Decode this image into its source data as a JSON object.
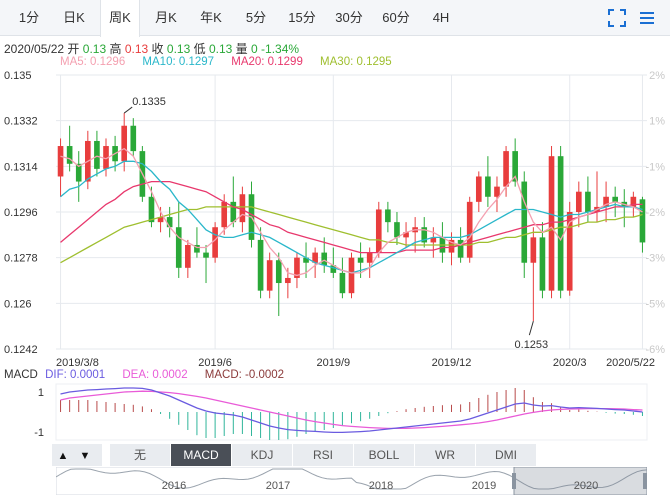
{
  "tabs": [
    "1分",
    "日K",
    "周K",
    "月K",
    "年K",
    "5分",
    "15分",
    "30分",
    "60分",
    "4H"
  ],
  "active_tab": "周K",
  "icons": {
    "fullscreen": "fullscreen-icon",
    "menu": "menu-icon"
  },
  "info": {
    "date": "2020/05/22",
    "open_label": "开",
    "open": "0.13",
    "high_label": "高",
    "high": "0.13",
    "close_label": "收",
    "close": "0.13",
    "low_label": "低",
    "low": "0.13",
    "volume_label": "量",
    "volume": "0",
    "change": "-1.34%"
  },
  "ma_legend": [
    {
      "label": "MA5: 0.1296",
      "color": "#f4a0b0"
    },
    {
      "label": "MA10: 0.1297",
      "color": "#2ab7ca"
    },
    {
      "label": "MA20: 0.1299",
      "color": "#e8386d"
    },
    {
      "label": "MA30: 0.1295",
      "color": "#9fbf2f"
    }
  ],
  "colors": {
    "up": "#e83d3d",
    "down": "#2aa838",
    "grid": "#e6e9ee",
    "axis_text": "#333333",
    "pct_text": "#c8c8c8",
    "dif": "#6a5be0",
    "dea": "#e95bd8"
  },
  "chart_data": {
    "type": "candlestick",
    "ylim": [
      0.1242,
      0.135
    ],
    "y_ticks": [
      "0.135",
      "0.1332",
      "0.1314",
      "0.1296",
      "0.1278",
      "0.126",
      "0.1242"
    ],
    "pct_ticks": [
      "2%",
      "1%",
      "-1%",
      "-2%",
      "-3%",
      "-5%",
      "-6%"
    ],
    "pct_tick_values": [
      0.135,
      0.1332,
      0.1314,
      0.1296,
      0.1278,
      0.126,
      0.1242
    ],
    "x_tick_labels": [
      "2019/3/8",
      "2019/6",
      "2019/9",
      "2019/12",
      "2020/3",
      "2020/5/22"
    ],
    "x_tick_index": [
      0,
      17,
      30,
      43,
      56,
      64
    ],
    "annotations": [
      {
        "text": "0.1335",
        "index": 7,
        "value": 0.1335
      },
      {
        "text": "0.1253",
        "index": 52,
        "value": 0.1253
      }
    ],
    "candles": [
      {
        "o": 0.131,
        "h": 0.1325,
        "l": 0.1302,
        "c": 0.1322
      },
      {
        "o": 0.1322,
        "h": 0.133,
        "l": 0.1312,
        "c": 0.1315
      },
      {
        "o": 0.1315,
        "h": 0.132,
        "l": 0.13,
        "c": 0.1308
      },
      {
        "o": 0.1308,
        "h": 0.1328,
        "l": 0.1305,
        "c": 0.1324
      },
      {
        "o": 0.1324,
        "h": 0.1328,
        "l": 0.131,
        "c": 0.1313
      },
      {
        "o": 0.1313,
        "h": 0.1325,
        "l": 0.131,
        "c": 0.1322
      },
      {
        "o": 0.1322,
        "h": 0.1326,
        "l": 0.1312,
        "c": 0.1316
      },
      {
        "o": 0.1316,
        "h": 0.1335,
        "l": 0.1312,
        "c": 0.133
      },
      {
        "o": 0.133,
        "h": 0.1333,
        "l": 0.1318,
        "c": 0.132
      },
      {
        "o": 0.132,
        "h": 0.1322,
        "l": 0.13,
        "c": 0.1302
      },
      {
        "o": 0.1302,
        "h": 0.1306,
        "l": 0.129,
        "c": 0.1292
      },
      {
        "o": 0.1292,
        "h": 0.1298,
        "l": 0.1288,
        "c": 0.1294
      },
      {
        "o": 0.1294,
        "h": 0.1298,
        "l": 0.1286,
        "c": 0.129
      },
      {
        "o": 0.129,
        "h": 0.13,
        "l": 0.127,
        "c": 0.1274
      },
      {
        "o": 0.1274,
        "h": 0.1285,
        "l": 0.127,
        "c": 0.1283
      },
      {
        "o": 0.1283,
        "h": 0.129,
        "l": 0.1278,
        "c": 0.128
      },
      {
        "o": 0.128,
        "h": 0.1283,
        "l": 0.1268,
        "c": 0.1278
      },
      {
        "o": 0.1278,
        "h": 0.1292,
        "l": 0.1276,
        "c": 0.129
      },
      {
        "o": 0.129,
        "h": 0.1303,
        "l": 0.1287,
        "c": 0.13
      },
      {
        "o": 0.13,
        "h": 0.131,
        "l": 0.129,
        "c": 0.1292
      },
      {
        "o": 0.1292,
        "h": 0.1306,
        "l": 0.1288,
        "c": 0.1303
      },
      {
        "o": 0.1303,
        "h": 0.1308,
        "l": 0.1282,
        "c": 0.1285
      },
      {
        "o": 0.1285,
        "h": 0.129,
        "l": 0.1262,
        "c": 0.1265
      },
      {
        "o": 0.1265,
        "h": 0.128,
        "l": 0.1262,
        "c": 0.1277
      },
      {
        "o": 0.1277,
        "h": 0.128,
        "l": 0.1255,
        "c": 0.1268
      },
      {
        "o": 0.1268,
        "h": 0.1274,
        "l": 0.1262,
        "c": 0.127
      },
      {
        "o": 0.127,
        "h": 0.128,
        "l": 0.1266,
        "c": 0.1278
      },
      {
        "o": 0.1278,
        "h": 0.1284,
        "l": 0.127,
        "c": 0.1276
      },
      {
        "o": 0.1276,
        "h": 0.1282,
        "l": 0.127,
        "c": 0.128
      },
      {
        "o": 0.128,
        "h": 0.1286,
        "l": 0.1272,
        "c": 0.1275
      },
      {
        "o": 0.1275,
        "h": 0.1282,
        "l": 0.127,
        "c": 0.1272
      },
      {
        "o": 0.1272,
        "h": 0.1278,
        "l": 0.1262,
        "c": 0.1264
      },
      {
        "o": 0.1264,
        "h": 0.128,
        "l": 0.1262,
        "c": 0.1278
      },
      {
        "o": 0.1278,
        "h": 0.1284,
        "l": 0.127,
        "c": 0.1276
      },
      {
        "o": 0.1276,
        "h": 0.1282,
        "l": 0.127,
        "c": 0.128
      },
      {
        "o": 0.128,
        "h": 0.13,
        "l": 0.1278,
        "c": 0.1297
      },
      {
        "o": 0.1297,
        "h": 0.13,
        "l": 0.1288,
        "c": 0.1292
      },
      {
        "o": 0.1292,
        "h": 0.1296,
        "l": 0.1283,
        "c": 0.1286
      },
      {
        "o": 0.1286,
        "h": 0.1292,
        "l": 0.1282,
        "c": 0.1288
      },
      {
        "o": 0.1288,
        "h": 0.1294,
        "l": 0.128,
        "c": 0.129
      },
      {
        "o": 0.129,
        "h": 0.1294,
        "l": 0.1282,
        "c": 0.1284
      },
      {
        "o": 0.1284,
        "h": 0.129,
        "l": 0.1278,
        "c": 0.1286
      },
      {
        "o": 0.1286,
        "h": 0.1292,
        "l": 0.1276,
        "c": 0.128
      },
      {
        "o": 0.128,
        "h": 0.1288,
        "l": 0.1275,
        "c": 0.1285
      },
      {
        "o": 0.1285,
        "h": 0.129,
        "l": 0.1276,
        "c": 0.1278
      },
      {
        "o": 0.1278,
        "h": 0.1302,
        "l": 0.1276,
        "c": 0.13
      },
      {
        "o": 0.13,
        "h": 0.1312,
        "l": 0.1296,
        "c": 0.131
      },
      {
        "o": 0.131,
        "h": 0.1318,
        "l": 0.1298,
        "c": 0.1302
      },
      {
        "o": 0.1302,
        "h": 0.131,
        "l": 0.1296,
        "c": 0.1306
      },
      {
        "o": 0.1306,
        "h": 0.1322,
        "l": 0.1302,
        "c": 0.132
      },
      {
        "o": 0.132,
        "h": 0.1325,
        "l": 0.1306,
        "c": 0.1308
      },
      {
        "o": 0.1308,
        "h": 0.1312,
        "l": 0.127,
        "c": 0.1276
      },
      {
        "o": 0.1276,
        "h": 0.129,
        "l": 0.1253,
        "c": 0.1286
      },
      {
        "o": 0.1286,
        "h": 0.1292,
        "l": 0.1262,
        "c": 0.1265
      },
      {
        "o": 0.1265,
        "h": 0.1322,
        "l": 0.1262,
        "c": 0.1318
      },
      {
        "o": 0.1318,
        "h": 0.1322,
        "l": 0.1262,
        "c": 0.1265
      },
      {
        "o": 0.1265,
        "h": 0.13,
        "l": 0.1263,
        "c": 0.1296
      },
      {
        "o": 0.1296,
        "h": 0.1308,
        "l": 0.129,
        "c": 0.1304
      },
      {
        "o": 0.1304,
        "h": 0.131,
        "l": 0.1292,
        "c": 0.1296
      },
      {
        "o": 0.1296,
        "h": 0.1312,
        "l": 0.1292,
        "c": 0.1298
      },
      {
        "o": 0.1298,
        "h": 0.1308,
        "l": 0.1292,
        "c": 0.1302
      },
      {
        "o": 0.1302,
        "h": 0.1306,
        "l": 0.1294,
        "c": 0.13
      },
      {
        "o": 0.13,
        "h": 0.1305,
        "l": 0.129,
        "c": 0.1298
      },
      {
        "o": 0.1298,
        "h": 0.1304,
        "l": 0.1294,
        "c": 0.1302
      },
      {
        "o": 0.1301,
        "h": 0.1302,
        "l": 0.128,
        "c": 0.1284
      }
    ],
    "ma5": [
      0.1318,
      0.1317,
      0.1314,
      0.1316,
      0.1318,
      0.1317,
      0.1319,
      0.1321,
      0.1318,
      0.1311,
      0.1304,
      0.1296,
      0.129,
      0.1286,
      0.1284,
      0.1282,
      0.1282,
      0.1285,
      0.1289,
      0.1292,
      0.1295,
      0.1294,
      0.1288,
      0.1282,
      0.1278,
      0.1272,
      0.1271,
      0.1272,
      0.1275,
      0.1277,
      0.1275,
      0.1273,
      0.1272,
      0.1272,
      0.1274,
      0.128,
      0.1284,
      0.1286,
      0.1288,
      0.1289,
      0.1289,
      0.1288,
      0.1286,
      0.1284,
      0.1283,
      0.1286,
      0.1292,
      0.1297,
      0.1301,
      0.1306,
      0.131,
      0.13,
      0.1292,
      0.1288,
      0.129,
      0.1285,
      0.1292,
      0.1294,
      0.1295,
      0.1297,
      0.1299,
      0.13,
      0.1299,
      0.1298,
      0.1296
    ],
    "ma10": [
      0.1302,
      0.1305,
      0.1306,
      0.1309,
      0.1311,
      0.1313,
      0.1314,
      0.1316,
      0.1316,
      0.1315,
      0.1312,
      0.1308,
      0.1305,
      0.13,
      0.1297,
      0.1293,
      0.1289,
      0.1287,
      0.1286,
      0.1286,
      0.1287,
      0.1288,
      0.1287,
      0.1286,
      0.1284,
      0.1282,
      0.128,
      0.1278,
      0.1276,
      0.1275,
      0.1274,
      0.1273,
      0.1272,
      0.1273,
      0.1274,
      0.1276,
      0.1278,
      0.128,
      0.1282,
      0.1284,
      0.1285,
      0.1286,
      0.1286,
      0.1286,
      0.1286,
      0.1287,
      0.1289,
      0.1291,
      0.1293,
      0.1295,
      0.1297,
      0.1297,
      0.1297,
      0.1296,
      0.1295,
      0.1294,
      0.1295,
      0.1295,
      0.1296,
      0.1297,
      0.1298,
      0.1299,
      0.1298,
      0.1298,
      0.1297
    ],
    "ma20": [
      0.1284,
      0.1287,
      0.129,
      0.1293,
      0.1296,
      0.1299,
      0.1301,
      0.1304,
      0.1306,
      0.1307,
      0.1308,
      0.1308,
      0.1308,
      0.1307,
      0.1306,
      0.1305,
      0.1304,
      0.1302,
      0.13,
      0.1298,
      0.1297,
      0.1295,
      0.1293,
      0.1291,
      0.129,
      0.1288,
      0.1287,
      0.1286,
      0.1285,
      0.1284,
      0.1283,
      0.1282,
      0.1281,
      0.128,
      0.128,
      0.128,
      0.128,
      0.128,
      0.1281,
      0.1281,
      0.1281,
      0.1281,
      0.1282,
      0.1282,
      0.1283,
      0.1284,
      0.1285,
      0.1286,
      0.1287,
      0.1288,
      0.1289,
      0.129,
      0.1291,
      0.1291,
      0.1292,
      0.1292,
      0.1293,
      0.1294,
      0.1295,
      0.1296,
      0.1297,
      0.1298,
      0.1298,
      0.1299,
      0.1299
    ],
    "ma30": [
      0.1276,
      0.1278,
      0.128,
      0.1282,
      0.1284,
      0.1286,
      0.1288,
      0.129,
      0.1291,
      0.1292,
      0.1293,
      0.1294,
      0.1295,
      0.1296,
      0.1297,
      0.1297,
      0.1298,
      0.1298,
      0.1298,
      0.1298,
      0.1298,
      0.1298,
      0.1297,
      0.1296,
      0.1295,
      0.1294,
      0.1293,
      0.1292,
      0.1291,
      0.129,
      0.1289,
      0.1288,
      0.1287,
      0.1286,
      0.1285,
      0.1285,
      0.1284,
      0.1284,
      0.1283,
      0.1283,
      0.1283,
      0.1283,
      0.1283,
      0.1283,
      0.1283,
      0.1283,
      0.1284,
      0.1284,
      0.1285,
      0.1286,
      0.1286,
      0.1287,
      0.1288,
      0.1288,
      0.1289,
      0.129,
      0.129,
      0.1291,
      0.1292,
      0.1292,
      0.1293,
      0.1293,
      0.1294,
      0.1294,
      0.1295
    ],
    "macd": {
      "title": "MACD",
      "dif_label": "DIF: 0.0001",
      "dea_label": "DEA: 0.0002",
      "macd_label": "MACD: -0.0002",
      "y_ticks": [
        "1",
        "-1"
      ],
      "ylim": [
        -1.4,
        1.4
      ],
      "dif": [
        0.9,
        1.0,
        1.05,
        1.1,
        1.12,
        1.15,
        1.17,
        1.2,
        1.2,
        1.18,
        1.1,
        0.95,
        0.8,
        0.6,
        0.4,
        0.2,
        0.05,
        -0.05,
        -0.1,
        -0.15,
        -0.25,
        -0.4,
        -0.55,
        -0.7,
        -0.8,
        -0.88,
        -0.92,
        -0.95,
        -0.97,
        -1.0,
        -1.02,
        -1.02,
        -1.0,
        -0.98,
        -0.95,
        -0.9,
        -0.85,
        -0.8,
        -0.75,
        -0.7,
        -0.65,
        -0.6,
        -0.55,
        -0.5,
        -0.45,
        -0.35,
        -0.2,
        -0.05,
        0.1,
        0.25,
        0.4,
        0.45,
        0.35,
        0.3,
        0.32,
        0.25,
        0.2,
        0.22,
        0.2,
        0.18,
        0.15,
        0.12,
        0.1,
        0.05,
        0.0
      ],
      "dea": [
        0.6,
        0.7,
        0.75,
        0.8,
        0.85,
        0.9,
        0.95,
        1.0,
        1.02,
        1.04,
        1.03,
        1.0,
        0.97,
        0.92,
        0.85,
        0.78,
        0.7,
        0.6,
        0.5,
        0.4,
        0.3,
        0.2,
        0.1,
        0.0,
        -0.1,
        -0.2,
        -0.3,
        -0.4,
        -0.48,
        -0.55,
        -0.62,
        -0.68,
        -0.72,
        -0.75,
        -0.78,
        -0.8,
        -0.82,
        -0.82,
        -0.82,
        -0.8,
        -0.78,
        -0.75,
        -0.72,
        -0.68,
        -0.64,
        -0.6,
        -0.55,
        -0.48,
        -0.4,
        -0.3,
        -0.2,
        -0.1,
        -0.02,
        0.05,
        0.1,
        0.13,
        0.15,
        0.16,
        0.17,
        0.17,
        0.17,
        0.16,
        0.15,
        0.12,
        0.1
      ],
      "hist": [
        0.6,
        0.6,
        0.6,
        0.6,
        0.55,
        0.5,
        0.45,
        0.4,
        0.36,
        0.28,
        0.14,
        -0.1,
        -0.34,
        -0.64,
        -0.9,
        -1.16,
        -1.3,
        -1.3,
        -1.2,
        -1.1,
        -1.1,
        -1.2,
        -1.3,
        -1.4,
        -1.4,
        -1.36,
        -1.24,
        -1.1,
        -0.98,
        -0.9,
        -0.8,
        -0.68,
        -0.56,
        -0.46,
        -0.34,
        -0.2,
        -0.06,
        0.04,
        0.14,
        0.2,
        0.26,
        0.3,
        0.34,
        0.36,
        0.38,
        0.5,
        0.7,
        0.86,
        1.0,
        1.1,
        1.2,
        1.1,
        0.74,
        0.5,
        0.44,
        0.24,
        0.1,
        0.12,
        0.06,
        0.02,
        -0.04,
        -0.08,
        -0.1,
        -0.14,
        -0.2
      ]
    },
    "navigator_years": [
      "2016",
      "2017",
      "2018",
      "2019",
      "2020"
    ]
  },
  "indicator_tabs": [
    "无",
    "MACD",
    "KDJ",
    "RSI",
    "BOLL",
    "WR",
    "DMI"
  ],
  "active_indicator": "MACD",
  "scroll": {
    "up": "▲",
    "down": "▼"
  }
}
